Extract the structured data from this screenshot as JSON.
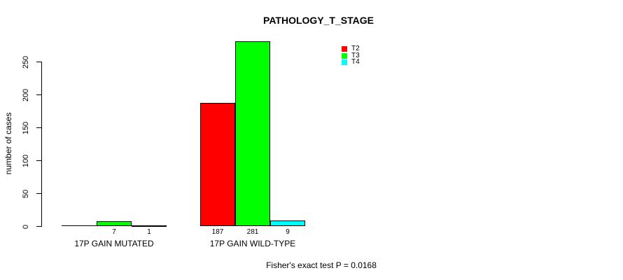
{
  "chart_data": {
    "type": "bar",
    "title": "PATHOLOGY_T_STAGE",
    "xlabel": "",
    "ylabel": "number of cases",
    "ylim": [
      0,
      250
    ],
    "yticks": [
      0,
      50,
      100,
      150,
      200,
      250
    ],
    "grid": false,
    "legend_position": "top-right",
    "categories": [
      "17P GAIN MUTATED",
      "17P GAIN WILD-TYPE"
    ],
    "series": [
      {
        "name": "T2",
        "color": "#ff0000",
        "values": [
          0,
          187
        ]
      },
      {
        "name": "T3",
        "color": "#00ff00",
        "values": [
          7,
          281
        ]
      },
      {
        "name": "T4",
        "color": "#00ffff",
        "values": [
          1,
          9
        ]
      }
    ],
    "bar_value_labels": [
      [
        "",
        "7",
        "1"
      ],
      [
        "187",
        "281",
        "9"
      ]
    ],
    "annotation": "Fisher's exact test P = 0.0168"
  }
}
